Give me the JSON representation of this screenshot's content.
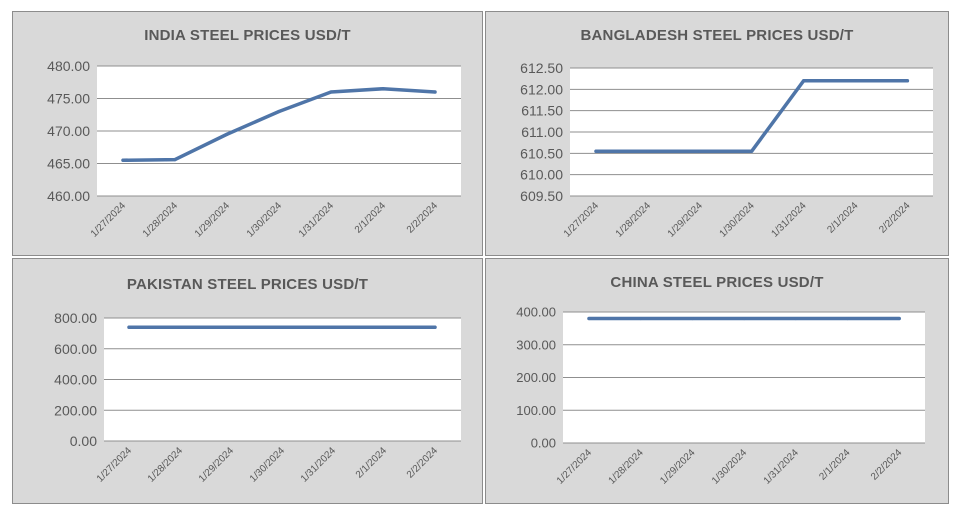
{
  "chart_data": [
    {
      "type": "line",
      "title": "INDIA STEEL PRICES USD/T",
      "categories": [
        "1/27/2024",
        "1/28/2024",
        "1/29/2024",
        "1/30/2024",
        "1/31/2024",
        "2/1/2024",
        "2/2/2024"
      ],
      "series": [
        {
          "values": [
            465.5,
            465.6,
            469.5,
            473.0,
            476.0,
            476.5,
            476.0
          ]
        }
      ],
      "yticks": [
        "460.00",
        "465.00",
        "470.00",
        "475.00",
        "480.00"
      ],
      "ylim": [
        460,
        480
      ],
      "grid": true,
      "color": "#4f75a8"
    },
    {
      "type": "line",
      "title": "BANGLADESH STEEL PRICES USD/T",
      "categories": [
        "1/27/2024",
        "1/28/2024",
        "1/29/2024",
        "1/30/2024",
        "1/31/2024",
        "2/1/2024",
        "2/2/2024"
      ],
      "series": [
        {
          "values": [
            610.55,
            610.55,
            610.55,
            610.55,
            612.2,
            612.2,
            612.2
          ]
        }
      ],
      "yticks": [
        "609.50",
        "610.00",
        "610.50",
        "611.00",
        "611.50",
        "612.00",
        "612.50"
      ],
      "ylim": [
        609.5,
        612.5
      ],
      "grid": true,
      "color": "#4f75a8"
    },
    {
      "type": "line",
      "title": "PAKISTAN STEEL PRICES USD/T",
      "categories": [
        "1/27/2024",
        "1/28/2024",
        "1/29/2024",
        "1/30/2024",
        "1/31/2024",
        "2/1/2024",
        "2/2/2024"
      ],
      "series": [
        {
          "values": [
            740,
            740,
            740,
            740,
            740,
            740,
            740
          ]
        }
      ],
      "yticks": [
        "0.00",
        "200.00",
        "400.00",
        "600.00",
        "800.00"
      ],
      "ylim": [
        0,
        800
      ],
      "grid": true,
      "color": "#4f75a8"
    },
    {
      "type": "line",
      "title": "CHINA STEEL PRICES USD/T",
      "categories": [
        "1/27/2024",
        "1/28/2024",
        "1/29/2024",
        "1/30/2024",
        "1/31/2024",
        "2/1/2024",
        "2/2/2024"
      ],
      "series": [
        {
          "values": [
            380,
            380,
            380,
            380,
            380,
            380,
            380
          ]
        }
      ],
      "yticks": [
        "0.00",
        "100.00",
        "200.00",
        "300.00",
        "400.00"
      ],
      "ylim": [
        0,
        400
      ],
      "grid": true,
      "color": "#4f75a8"
    }
  ]
}
